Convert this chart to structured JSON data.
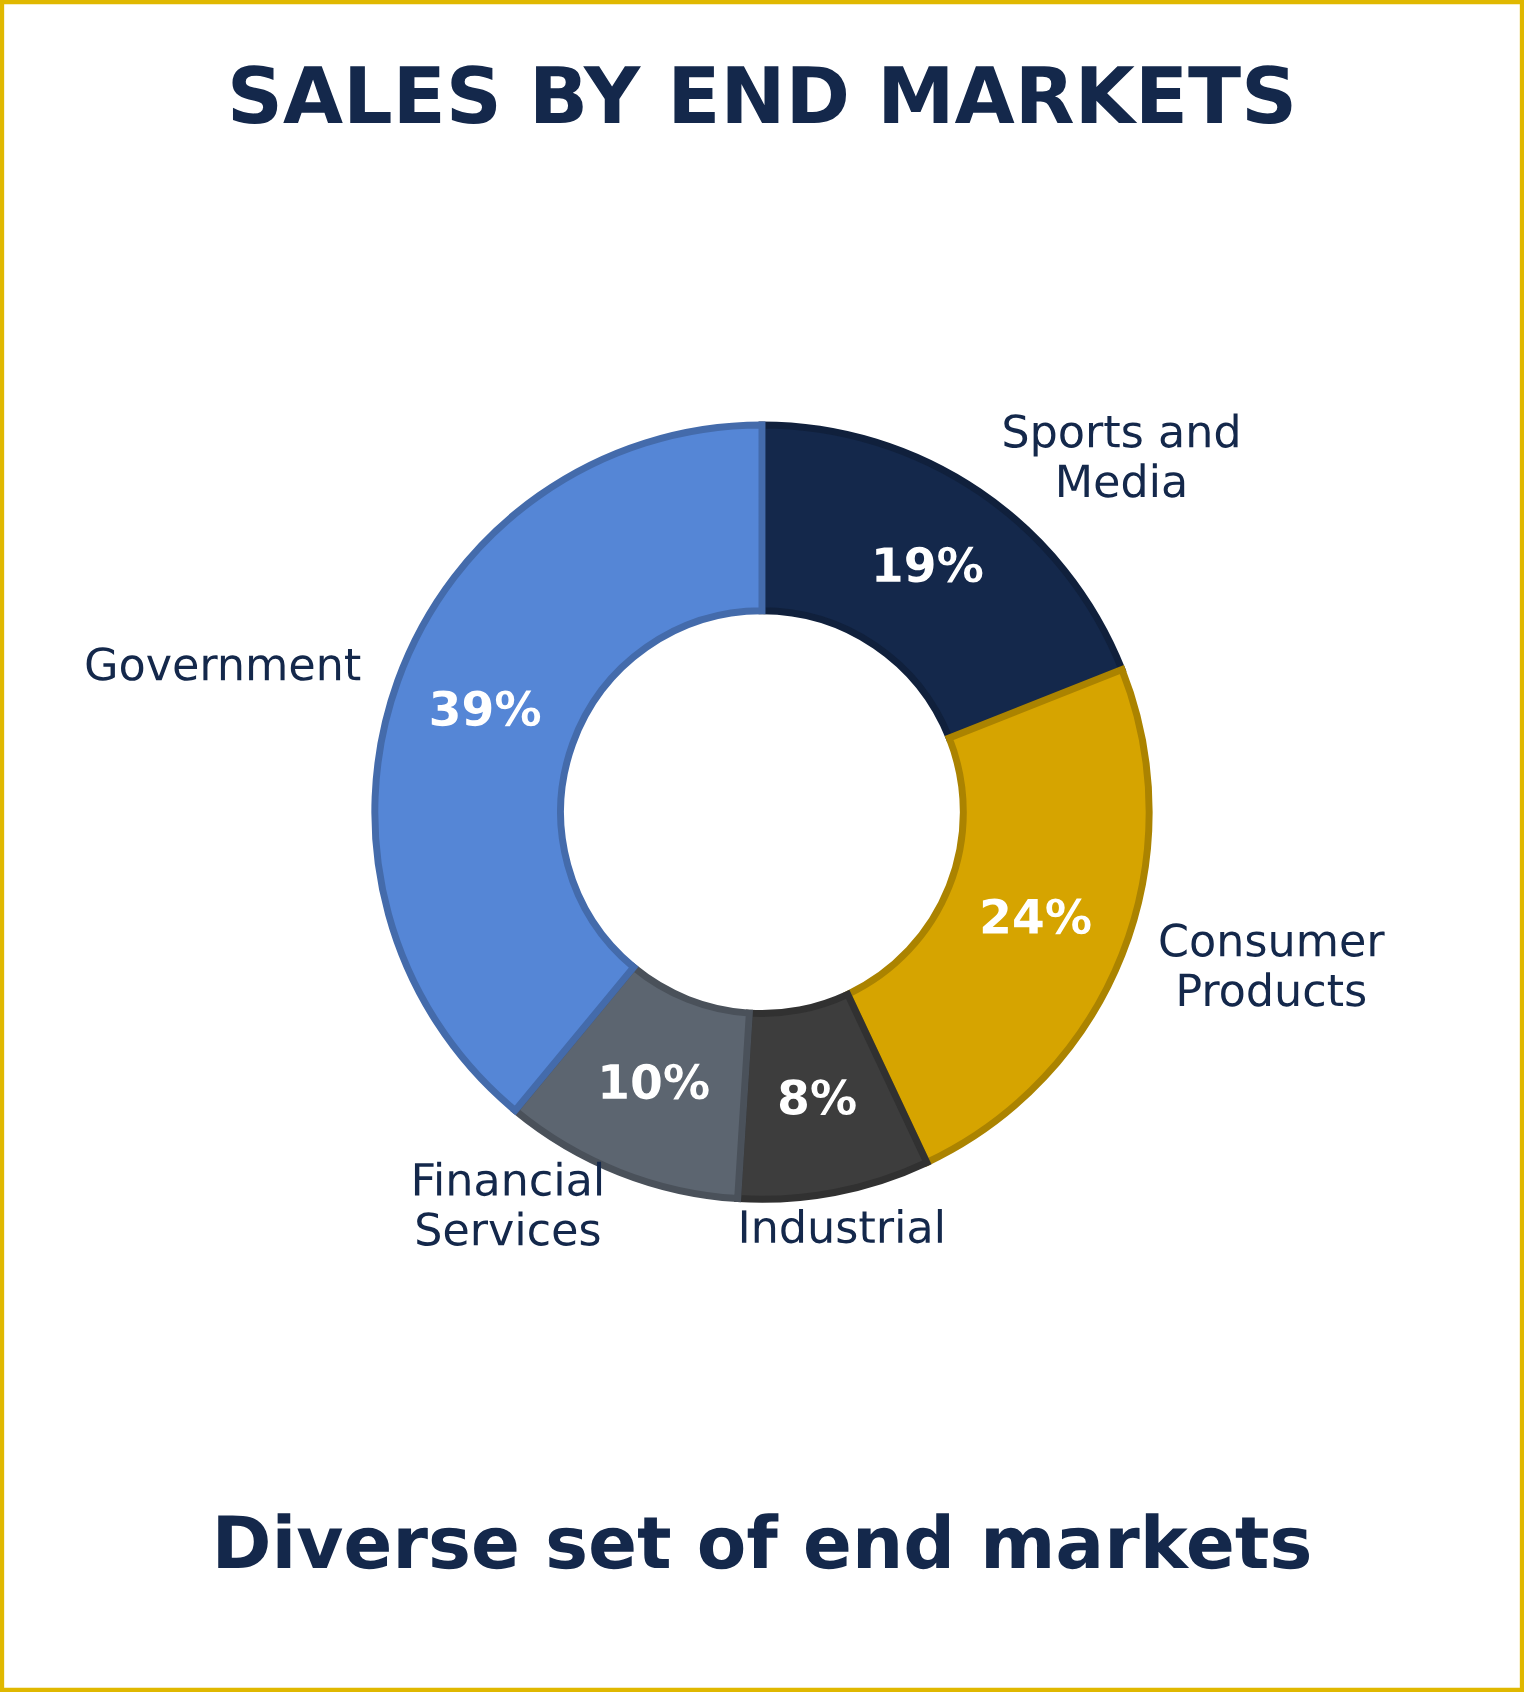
{
  "chart_data": {
    "type": "donut",
    "title": "SALES BY END MARKETS",
    "categories": [
      "Sports and\nMedia",
      "Consumer\nProducts",
      "Industrial",
      "Financial\nServices",
      "Government"
    ],
    "values": [
      19,
      24,
      8,
      10,
      39
    ],
    "value_labels": [
      "19%",
      "24%",
      "8%",
      "10%",
      "39%"
    ],
    "colors": [
      "#14284b",
      "#d6a400",
      "#3d3d3d",
      "#5c6570",
      "#5586d6"
    ],
    "annotations": [
      "Diverse set of end markets"
    ],
    "legend": false
  }
}
